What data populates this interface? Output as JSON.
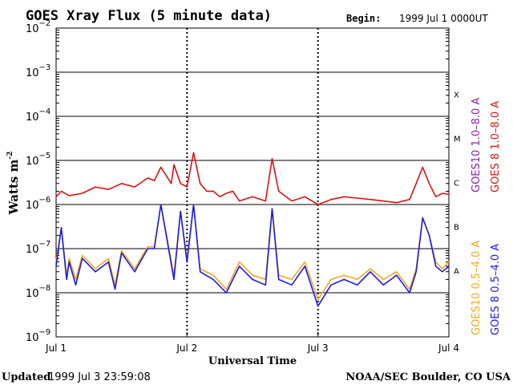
{
  "title": "GOES Xray Flux (5 minute data)",
  "begin_label": "Begin:",
  "begin_value": "1999 Jul 1 0000UT",
  "ylabel": "Watts m",
  "ylabel_sup": "-2",
  "xlabel": "Universal Time",
  "updated_label": "Updated",
  "updated_value": "1999 Jul  3 23:59:08",
  "credit": "NOAA/SEC Boulder, CO USA",
  "colors": {
    "goes8_long": "#e01010",
    "goes8_short": "#1a1aee",
    "goes10_long": "#8a22b0",
    "goes10_short": "#f5a81a",
    "grid": "#000000"
  },
  "legend": [
    {
      "text": "GOES10 1.0–8.0 A",
      "color": "#8a22b0"
    },
    {
      "text": "GOES 8 1.0–8.0 A",
      "color": "#e01010"
    },
    {
      "text": "GOES10 0.5–4.0 A",
      "color": "#f5a81a"
    },
    {
      "text": "GOES 8 0.5–4.0 A",
      "color": "#1a1aee"
    }
  ],
  "flare_classes": [
    "X",
    "M",
    "C",
    "B",
    "A"
  ],
  "chart_data": {
    "type": "line",
    "title": "GOES Xray Flux (5 minute data)",
    "xlabel": "Universal Time",
    "ylabel": "Watts m-2",
    "yscale": "log",
    "ylim": [
      1e-09,
      0.01
    ],
    "yticks": [
      {
        "exp": -2,
        "label": "10"
      },
      {
        "exp": -3,
        "label": "10"
      },
      {
        "exp": -4,
        "label": "10"
      },
      {
        "exp": -5,
        "label": "10"
      },
      {
        "exp": -6,
        "label": "10"
      },
      {
        "exp": -7,
        "label": "10"
      },
      {
        "exp": -8,
        "label": "10"
      },
      {
        "exp": -9,
        "label": "10"
      }
    ],
    "xticks": [
      "Jul 1",
      "Jul 2",
      "Jul 3",
      "Jul 4"
    ],
    "xlim_days": [
      0,
      3
    ],
    "series": [
      {
        "name": "GOES 8 1.0–8.0 A",
        "color": "#e01010",
        "x_days": [
          0,
          0.04,
          0.1,
          0.2,
          0.3,
          0.4,
          0.5,
          0.6,
          0.7,
          0.75,
          0.8,
          0.88,
          0.9,
          0.95,
          1.0,
          1.05,
          1.1,
          1.15,
          1.2,
          1.25,
          1.3,
          1.35,
          1.4,
          1.5,
          1.6,
          1.65,
          1.7,
          1.8,
          1.9,
          2.0,
          2.1,
          2.2,
          2.3,
          2.4,
          2.5,
          2.6,
          2.7,
          2.75,
          2.8,
          2.85,
          2.9,
          2.95,
          3.0
        ],
        "y": [
          1.5e-06,
          2e-06,
          1.6e-06,
          1.8e-06,
          2.5e-06,
          2.2e-06,
          3e-06,
          2.5e-06,
          4e-06,
          3.5e-06,
          7e-06,
          3e-06,
          8e-06,
          3e-06,
          2.5e-06,
          1.5e-05,
          3e-06,
          2e-06,
          2e-06,
          1.5e-06,
          1.8e-06,
          2e-06,
          1.2e-06,
          1.5e-06,
          1.2e-06,
          1.1e-05,
          2e-06,
          1.2e-06,
          1.5e-06,
          1e-06,
          1.3e-06,
          1.5e-06,
          1.4e-06,
          1.3e-06,
          1.2e-06,
          1.1e-06,
          1.3e-06,
          3e-06,
          7e-06,
          3e-06,
          1.5e-06,
          1.8e-06,
          1.7e-06
        ]
      },
      {
        "name": "GOES 8 0.5–4.0 A",
        "color": "#1a1aee",
        "x_days": [
          0,
          0.04,
          0.08,
          0.1,
          0.15,
          0.2,
          0.3,
          0.4,
          0.45,
          0.5,
          0.6,
          0.7,
          0.75,
          0.8,
          0.9,
          0.95,
          1.0,
          1.05,
          1.1,
          1.2,
          1.3,
          1.4,
          1.5,
          1.6,
          1.65,
          1.7,
          1.8,
          1.9,
          2.0,
          2.1,
          2.2,
          2.3,
          2.4,
          2.5,
          2.6,
          2.7,
          2.75,
          2.8,
          2.85,
          2.9,
          2.95,
          3.0
        ],
        "y": [
          4e-08,
          3e-07,
          2e-08,
          5e-08,
          1.5e-08,
          6e-08,
          3e-08,
          5e-08,
          1.2e-08,
          8e-08,
          3e-08,
          1e-07,
          1e-07,
          1e-06,
          2e-08,
          7e-07,
          5e-08,
          1e-06,
          3e-08,
          2e-08,
          1e-08,
          4e-08,
          2e-08,
          1.5e-08,
          8e-07,
          2e-08,
          1.5e-08,
          4e-08,
          5e-09,
          1.5e-08,
          2e-08,
          1.5e-08,
          3e-08,
          1.5e-08,
          2.5e-08,
          1e-08,
          3e-08,
          5e-07,
          2e-07,
          4e-08,
          3e-08,
          4e-08
        ]
      },
      {
        "name": "GOES10 0.5–4.0 A",
        "color": "#f5a81a",
        "x_days": [
          0,
          0.04,
          0.08,
          0.1,
          0.15,
          0.2,
          0.3,
          0.4,
          0.45,
          0.5,
          0.6,
          0.7,
          0.75,
          0.8,
          0.9,
          0.95,
          1.0,
          1.05,
          1.1,
          1.2,
          1.3,
          1.4,
          1.5,
          1.6,
          1.65,
          1.7,
          1.8,
          1.9,
          2.0,
          2.1,
          2.2,
          2.3,
          2.4,
          2.5,
          2.6,
          2.7,
          2.75,
          2.8,
          2.85,
          2.9,
          2.95,
          3.0
        ],
        "y": [
          5e-08,
          3e-07,
          2.5e-08,
          6e-08,
          2e-08,
          7e-08,
          3.5e-08,
          6e-08,
          1.5e-08,
          9e-08,
          3.5e-08,
          1.1e-07,
          1.1e-07,
          1e-06,
          2.5e-08,
          7e-07,
          6e-08,
          1e-06,
          3.5e-08,
          2.5e-08,
          1.2e-08,
          5e-08,
          2.5e-08,
          2e-08,
          8e-07,
          2.5e-08,
          2e-08,
          5e-08,
          7e-09,
          2e-08,
          2.5e-08,
          2e-08,
          3.5e-08,
          2e-08,
          3e-08,
          1.2e-08,
          3.5e-08,
          5e-07,
          2e-07,
          5e-08,
          3.5e-08,
          5e-08
        ]
      }
    ]
  }
}
